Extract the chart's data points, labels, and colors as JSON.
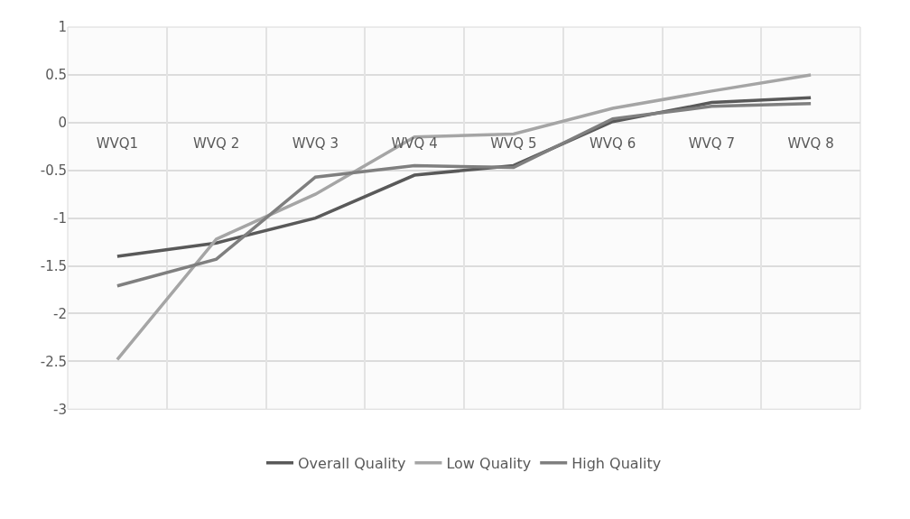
{
  "chart_data": {
    "type": "line",
    "categories": [
      "WVQ1",
      "WVQ 2",
      "WVQ 3",
      "WVQ 4",
      "WVQ 5",
      "WVQ 6",
      "WVQ 7",
      "WVQ 8"
    ],
    "series": [
      {
        "name": "Overall Quality",
        "color": "#595959",
        "values": [
          -1.4,
          -1.26,
          -1.0,
          -0.55,
          -0.45,
          0.01,
          0.21,
          0.26
        ]
      },
      {
        "name": "Low Quality",
        "color": "#a5a5a5",
        "values": [
          -2.48,
          -1.22,
          -0.75,
          -0.15,
          -0.12,
          0.15,
          0.33,
          0.5
        ]
      },
      {
        "name": "High Quality",
        "color": "#7f7f7f",
        "values": [
          -1.71,
          -1.43,
          -0.57,
          -0.45,
          -0.47,
          0.04,
          0.17,
          0.2
        ]
      }
    ],
    "ylim": [
      -3,
      1
    ],
    "yticks": [
      -3,
      -2.5,
      -2,
      -1.5,
      -1,
      -0.5,
      0,
      0.5,
      1
    ],
    "grid": true,
    "legend": "bottom",
    "marker": "none",
    "line_style": "solid"
  }
}
